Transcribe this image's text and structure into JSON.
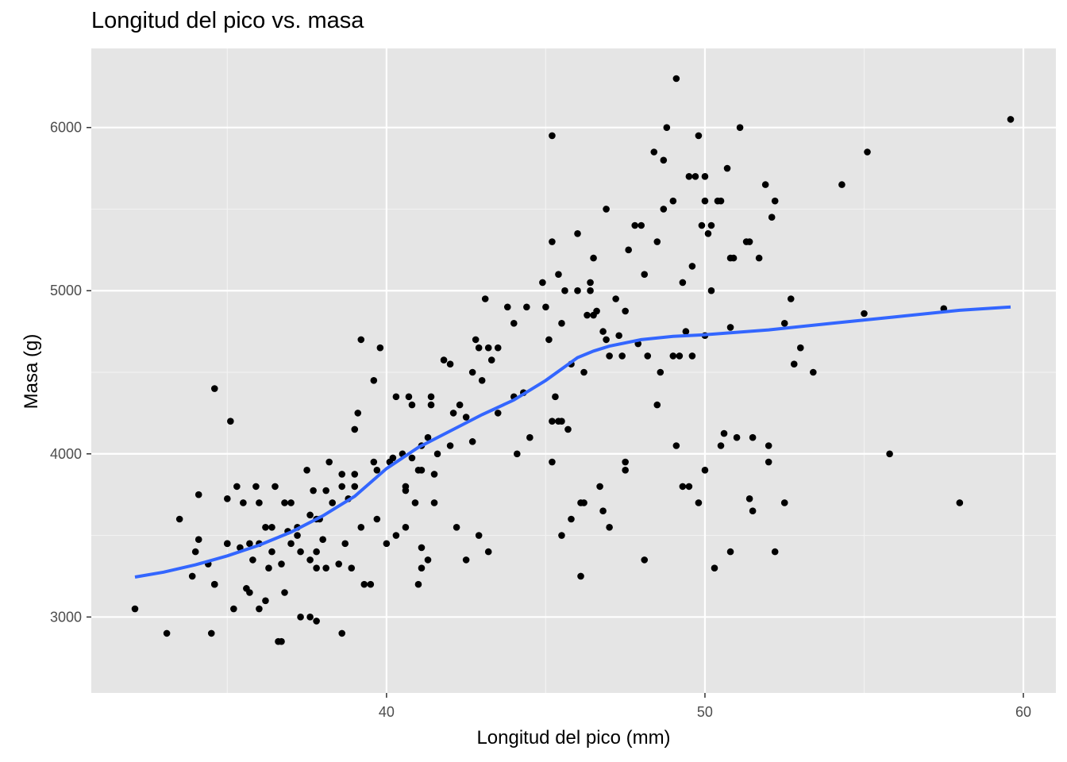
{
  "chart_data": {
    "type": "scatter",
    "title": "Longitud del pico vs. masa",
    "xlabel": "Longitud del pico (mm)",
    "ylabel": "Masa (g)",
    "xlim": [
      32.1,
      59.6
    ],
    "ylim": [
      2700,
      6300
    ],
    "x_ticks": [
      40,
      50,
      60
    ],
    "y_ticks": [
      3000,
      4000,
      5000,
      6000
    ],
    "grid": true,
    "background": "#e5e5e5",
    "point_color": "#000000",
    "smooth_color": "#3366ff",
    "points": [
      [
        32.1,
        3050
      ],
      [
        33.1,
        2900
      ],
      [
        33.5,
        3600
      ],
      [
        34.0,
        3400
      ],
      [
        34.1,
        3475
      ],
      [
        34.4,
        3325
      ],
      [
        34.5,
        2900
      ],
      [
        34.6,
        3200
      ],
      [
        34.6,
        4400
      ],
      [
        35.0,
        3725
      ],
      [
        35.0,
        3450
      ],
      [
        35.1,
        4200
      ],
      [
        35.2,
        3050
      ],
      [
        35.3,
        3800
      ],
      [
        35.5,
        3700
      ],
      [
        35.6,
        3175
      ],
      [
        35.7,
        3150
      ],
      [
        35.7,
        3450
      ],
      [
        35.9,
        3800
      ],
      [
        36.0,
        3700
      ],
      [
        36.0,
        3450
      ],
      [
        36.0,
        3050
      ],
      [
        36.2,
        3100
      ],
      [
        36.3,
        3300
      ],
      [
        36.4,
        3550
      ],
      [
        36.5,
        3800
      ],
      [
        36.6,
        2850
      ],
      [
        36.7,
        3325
      ],
      [
        36.7,
        2850
      ],
      [
        36.8,
        3150
      ],
      [
        36.8,
        3700
      ],
      [
        37.0,
        3450
      ],
      [
        37.2,
        3500
      ],
      [
        37.3,
        3400
      ],
      [
        37.3,
        3000
      ],
      [
        37.5,
        3900
      ],
      [
        37.6,
        3000
      ],
      [
        37.6,
        3350
      ],
      [
        37.7,
        3775
      ],
      [
        37.8,
        3600
      ],
      [
        37.8,
        3300
      ],
      [
        37.8,
        2975
      ],
      [
        37.9,
        3600
      ],
      [
        38.0,
        3475
      ],
      [
        38.1,
        3300
      ],
      [
        38.2,
        3950
      ],
      [
        38.3,
        3700
      ],
      [
        38.6,
        3800
      ],
      [
        38.6,
        2900
      ],
      [
        38.7,
        3450
      ],
      [
        38.8,
        3725
      ],
      [
        39.0,
        3800
      ],
      [
        39.2,
        3550
      ],
      [
        39.3,
        3200
      ],
      [
        39.6,
        3950
      ],
      [
        39.7,
        3900
      ],
      [
        39.8,
        4650
      ],
      [
        40.0,
        3450
      ],
      [
        40.1,
        3950
      ],
      [
        40.2,
        3975
      ],
      [
        40.5,
        4000
      ],
      [
        40.6,
        3550
      ],
      [
        40.8,
        4300
      ],
      [
        40.9,
        3700
      ],
      [
        41.0,
        3900
      ],
      [
        41.1,
        3300
      ],
      [
        41.1,
        3425
      ],
      [
        41.1,
        4050
      ],
      [
        41.3,
        3350
      ],
      [
        41.4,
        4300
      ],
      [
        41.5,
        3700
      ],
      [
        41.6,
        4000
      ],
      [
        42.0,
        4050
      ],
      [
        42.1,
        4250
      ],
      [
        42.2,
        3550
      ],
      [
        42.3,
        4300
      ],
      [
        42.5,
        3350
      ],
      [
        42.7,
        4500
      ],
      [
        42.8,
        4700
      ],
      [
        43.1,
        4950
      ],
      [
        43.2,
        3400
      ],
      [
        43.3,
        4575
      ],
      [
        43.5,
        4650
      ],
      [
        43.8,
        4900
      ],
      [
        44.1,
        4000
      ],
      [
        44.5,
        4100
      ],
      [
        45.1,
        4700
      ],
      [
        45.2,
        3950
      ],
      [
        45.2,
        5300
      ],
      [
        45.4,
        4200
      ],
      [
        45.5,
        4800
      ],
      [
        45.8,
        3600
      ],
      [
        46.1,
        3250
      ],
      [
        46.2,
        4500
      ],
      [
        46.4,
        5000
      ],
      [
        46.5,
        5200
      ],
      [
        46.8,
        3650
      ],
      [
        46.9,
        5500
      ],
      [
        47.0,
        4600
      ],
      [
        47.3,
        4725
      ],
      [
        47.5,
        4875
      ],
      [
        47.8,
        5400
      ],
      [
        48.1,
        5100
      ],
      [
        48.5,
        5300
      ],
      [
        48.7,
        5800
      ],
      [
        49.0,
        5550
      ],
      [
        49.1,
        6300
      ],
      [
        49.2,
        4600
      ],
      [
        49.5,
        5700
      ],
      [
        49.8,
        5950
      ],
      [
        50.0,
        5550
      ],
      [
        50.2,
        5000
      ],
      [
        50.5,
        5550
      ],
      [
        50.8,
        5200
      ],
      [
        51.1,
        6000
      ],
      [
        51.3,
        5300
      ],
      [
        51.5,
        3650
      ],
      [
        52.0,
        4050
      ],
      [
        52.2,
        5550
      ],
      [
        52.8,
        4550
      ],
      [
        53.4,
        4500
      ],
      [
        54.3,
        5650
      ],
      [
        55.1,
        5850
      ],
      [
        55.8,
        4000
      ],
      [
        58.0,
        3700
      ],
      [
        59.6,
        6050
      ],
      [
        34.6,
        3200
      ],
      [
        35.8,
        3350
      ],
      [
        37.0,
        3700
      ],
      [
        38.1,
        3775
      ],
      [
        39.0,
        4150
      ],
      [
        39.6,
        4450
      ],
      [
        40.6,
        3800
      ],
      [
        41.1,
        3900
      ],
      [
        41.5,
        3875
      ],
      [
        42.7,
        4075
      ],
      [
        43.2,
        4650
      ],
      [
        45.2,
        5950
      ],
      [
        45.3,
        4350
      ],
      [
        45.6,
        5000
      ],
      [
        46.0,
        5350
      ],
      [
        46.5,
        4850
      ],
      [
        47.2,
        4950
      ],
      [
        48.4,
        5850
      ],
      [
        48.8,
        6000
      ],
      [
        49.6,
        4600
      ],
      [
        50.0,
        5700
      ],
      [
        50.7,
        5750
      ],
      [
        51.4,
        5300
      ],
      [
        52.1,
        5450
      ],
      [
        45.5,
        3500
      ],
      [
        46.7,
        3800
      ],
      [
        47.5,
        3900
      ],
      [
        48.1,
        3350
      ],
      [
        49.3,
        3800
      ],
      [
        49.8,
        3700
      ],
      [
        50.3,
        3300
      ],
      [
        50.8,
        3400
      ],
      [
        51.0,
        4100
      ],
      [
        51.4,
        3725
      ],
      [
        52.0,
        3950
      ],
      [
        49.5,
        3800
      ],
      [
        46.1,
        3700
      ],
      [
        45.7,
        4150
      ],
      [
        46.9,
        4700
      ],
      [
        47.6,
        5250
      ],
      [
        48.2,
        4600
      ],
      [
        49.0,
        4600
      ],
      [
        49.9,
        5400
      ],
      [
        50.4,
        5550
      ],
      [
        50.9,
        5200
      ],
      [
        35.0,
        3450
      ],
      [
        36.4,
        3400
      ],
      [
        38.5,
        3325
      ],
      [
        39.5,
        3200
      ],
      [
        41.0,
        3200
      ],
      [
        43.0,
        4450
      ],
      [
        44.0,
        4350
      ],
      [
        45.2,
        4200
      ],
      [
        46.6,
        4875
      ],
      [
        48.5,
        4300
      ],
      [
        49.7,
        5700
      ],
      [
        50.1,
        5350
      ],
      [
        51.9,
        5650
      ],
      [
        52.2,
        3400
      ],
      [
        34.1,
        3750
      ],
      [
        37.2,
        3550
      ],
      [
        39.7,
        3600
      ],
      [
        40.3,
        3500
      ],
      [
        41.4,
        4350
      ],
      [
        42.9,
        3500
      ],
      [
        44.9,
        5050
      ],
      [
        45.4,
        5100
      ],
      [
        46.4,
        5050
      ],
      [
        47.5,
        3950
      ],
      [
        50.0,
        3900
      ],
      [
        50.5,
        4050
      ],
      [
        51.5,
        4100
      ],
      [
        38.9,
        3300
      ],
      [
        39.1,
        4250
      ],
      [
        40.7,
        4350
      ],
      [
        42.0,
        4550
      ],
      [
        42.9,
        4650
      ],
      [
        44.4,
        4900
      ],
      [
        46.3,
        4850
      ],
      [
        46.8,
        4750
      ],
      [
        48.6,
        4500
      ],
      [
        49.1,
        4050
      ],
      [
        49.4,
        4750
      ],
      [
        50.6,
        4125
      ],
      [
        52.5,
        3700
      ],
      [
        36.2,
        3550
      ],
      [
        37.8,
        3400
      ],
      [
        39.2,
        4700
      ],
      [
        40.3,
        4350
      ],
      [
        41.3,
        4100
      ],
      [
        43.5,
        4250
      ],
      [
        45.5,
        4200
      ],
      [
        46.2,
        3700
      ],
      [
        47.0,
        3550
      ],
      [
        48.7,
        5500
      ],
      [
        49.6,
        5150
      ],
      [
        50.2,
        5400
      ],
      [
        51.7,
        5200
      ],
      [
        52.7,
        4950
      ],
      [
        33.9,
        3250
      ],
      [
        36.9,
        3525
      ],
      [
        38.6,
        3875
      ],
      [
        40.6,
        3775
      ],
      [
        41.8,
        4575
      ],
      [
        44.0,
        4800
      ],
      [
        45.0,
        4900
      ],
      [
        46.0,
        5000
      ],
      [
        47.4,
        4600
      ],
      [
        48.0,
        5400
      ],
      [
        49.3,
        5050
      ],
      [
        50.8,
        4775
      ],
      [
        53.0,
        4650
      ],
      [
        35.4,
        3425
      ],
      [
        37.6,
        3625
      ],
      [
        39.0,
        3875
      ],
      [
        40.8,
        3975
      ],
      [
        42.5,
        4225
      ],
      [
        44.3,
        4375
      ],
      [
        45.8,
        4550
      ],
      [
        47.9,
        4675
      ],
      [
        50.0,
        4725
      ],
      [
        52.5,
        4800
      ],
      [
        55.0,
        4860
      ],
      [
        57.5,
        4890
      ]
    ],
    "smooth_x": [
      32.1,
      33,
      34,
      35,
      36,
      37,
      38,
      39,
      40,
      41,
      42,
      43,
      44,
      45,
      46,
      46.5,
      47,
      48,
      49,
      50,
      52,
      54,
      56,
      58,
      59.6
    ],
    "smooth_y": [
      3245,
      3275,
      3320,
      3375,
      3440,
      3520,
      3620,
      3740,
      3910,
      4040,
      4140,
      4240,
      4330,
      4450,
      4590,
      4630,
      4660,
      4700,
      4720,
      4730,
      4760,
      4800,
      4840,
      4880,
      4900
    ]
  }
}
